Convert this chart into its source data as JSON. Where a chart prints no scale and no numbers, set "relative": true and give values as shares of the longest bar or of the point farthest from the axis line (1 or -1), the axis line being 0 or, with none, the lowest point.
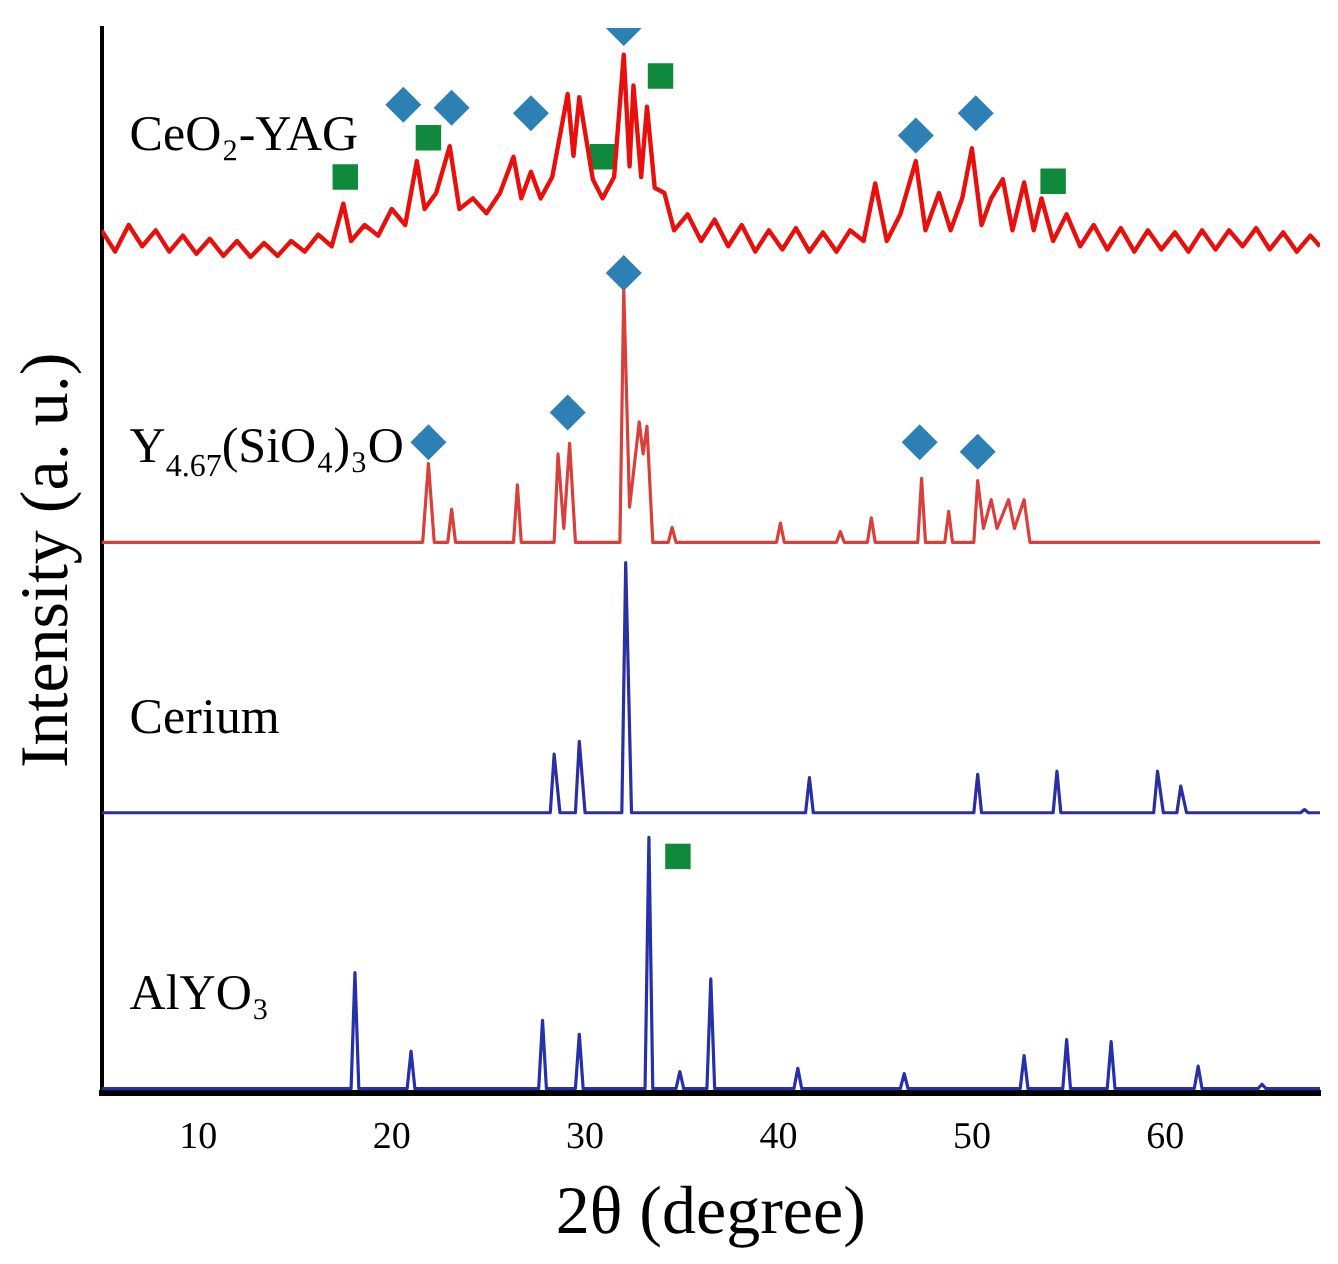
{
  "chart_data": {
    "type": "line",
    "relative": true,
    "xlabel": "2θ (degree)",
    "ylabel": "Intensity (a. u.)",
    "xlim": [
      5,
      68
    ],
    "xticks": [
      10,
      20,
      30,
      40,
      50,
      60
    ],
    "tick_labels": "x",
    "grid": false,
    "legend": false,
    "series": [
      {
        "name": "CeO₂-YAG",
        "type": "line",
        "marker": "none",
        "color": "#e8100c",
        "x": [
          5,
          5.7,
          6.4,
          7.1,
          7.8,
          8.5,
          9.2,
          9.9,
          10.6,
          11.3,
          12,
          12.7,
          13.4,
          14.1,
          14.8,
          15.5,
          16.2,
          16.9,
          17.5,
          17.9,
          18.6,
          19.3,
          20,
          20.7,
          21.3,
          21.7,
          22.3,
          23,
          23.5,
          24.2,
          24.9,
          25.6,
          26.3,
          26.7,
          27.2,
          27.7,
          28.3,
          29.1,
          29.4,
          29.7,
          30.4,
          30.9,
          31.5,
          32,
          32.3,
          32.5,
          32.9,
          33.2,
          33.6,
          34.1,
          34.6,
          35.3,
          36,
          36.7,
          37.4,
          38.1,
          38.8,
          39.5,
          40.2,
          40.9,
          41.6,
          42.3,
          43,
          43.7,
          44.4,
          45,
          45.6,
          46.3,
          47.1,
          47.6,
          48.3,
          48.9,
          49.5,
          50,
          50.5,
          51,
          51.6,
          52.1,
          52.7,
          53.2,
          53.6,
          54.2,
          54.9,
          55.6,
          56.3,
          57,
          57.7,
          58.4,
          59.1,
          59.8,
          60.5,
          61.2,
          61.9,
          62.6,
          63.3,
          64,
          64.7,
          65.4,
          66.1,
          66.8,
          67.5,
          68
        ],
        "values": [
          0.81,
          0.79,
          0.815,
          0.795,
          0.81,
          0.79,
          0.805,
          0.788,
          0.802,
          0.786,
          0.8,
          0.785,
          0.798,
          0.786,
          0.8,
          0.79,
          0.806,
          0.795,
          0.835,
          0.8,
          0.815,
          0.805,
          0.83,
          0.815,
          0.875,
          0.83,
          0.845,
          0.889,
          0.83,
          0.84,
          0.826,
          0.845,
          0.879,
          0.84,
          0.865,
          0.84,
          0.86,
          0.938,
          0.88,
          0.935,
          0.858,
          0.84,
          0.86,
          0.975,
          0.87,
          0.946,
          0.86,
          0.926,
          0.85,
          0.845,
          0.81,
          0.825,
          0.8,
          0.82,
          0.795,
          0.815,
          0.79,
          0.81,
          0.792,
          0.812,
          0.79,
          0.808,
          0.79,
          0.81,
          0.8,
          0.854,
          0.8,
          0.825,
          0.875,
          0.81,
          0.845,
          0.81,
          0.84,
          0.887,
          0.815,
          0.84,
          0.858,
          0.81,
          0.855,
          0.81,
          0.84,
          0.8,
          0.825,
          0.795,
          0.815,
          0.792,
          0.812,
          0.79,
          0.81,
          0.792,
          0.808,
          0.79,
          0.81,
          0.792,
          0.81,
          0.795,
          0.812,
          0.792,
          0.808,
          0.79,
          0.805,
          0.795
        ]
      },
      {
        "name": "Y$_{4.67}$(SiO₄)₃O",
        "type": "line",
        "marker": "none",
        "color": "#d8403c",
        "x": [
          5,
          21.6,
          21.9,
          22.2,
          22.9,
          23.1,
          23.3,
          26.3,
          26.5,
          26.7,
          28.4,
          28.6,
          28.9,
          29.2,
          29.5,
          31.8,
          32.0,
          32.3,
          32.8,
          33.0,
          33.2,
          33.5,
          34.3,
          34.5,
          34.7,
          39.9,
          40.1,
          40.3,
          43.0,
          43.2,
          43.4,
          44.6,
          44.8,
          45.0,
          47.2,
          47.4,
          47.6,
          48.6,
          48.8,
          49.0,
          50.1,
          50.3,
          50.6,
          51.0,
          51.3,
          51.9,
          52.2,
          52.7,
          53.0,
          68
        ],
        "values": [
          0.517,
          0.517,
          0.591,
          0.517,
          0.517,
          0.548,
          0.517,
          0.517,
          0.571,
          0.517,
          0.517,
          0.6,
          0.53,
          0.61,
          0.517,
          0.517,
          0.754,
          0.55,
          0.63,
          0.6,
          0.626,
          0.517,
          0.517,
          0.531,
          0.517,
          0.517,
          0.535,
          0.517,
          0.517,
          0.527,
          0.517,
          0.517,
          0.54,
          0.517,
          0.517,
          0.577,
          0.517,
          0.517,
          0.546,
          0.517,
          0.517,
          0.575,
          0.53,
          0.557,
          0.53,
          0.557,
          0.53,
          0.557,
          0.517,
          0.517
        ]
      },
      {
        "name": "Cerium",
        "type": "line",
        "marker": "none",
        "color": "#2b2fa0",
        "x": [
          5,
          28.2,
          28.4,
          28.7,
          29.5,
          29.7,
          30.0,
          31.9,
          32.1,
          32.4,
          41.4,
          41.6,
          41.8,
          50.1,
          50.3,
          50.5,
          54.2,
          54.4,
          54.6,
          59.4,
          59.6,
          59.9,
          60.6,
          60.8,
          61.1,
          67.0,
          67.2,
          67.4,
          68
        ],
        "values": [
          0.263,
          0.263,
          0.318,
          0.263,
          0.263,
          0.33,
          0.263,
          0.263,
          0.498,
          0.263,
          0.263,
          0.296,
          0.263,
          0.263,
          0.299,
          0.263,
          0.263,
          0.302,
          0.263,
          0.263,
          0.302,
          0.263,
          0.263,
          0.288,
          0.263,
          0.263,
          0.266,
          0.263,
          0.263
        ]
      },
      {
        "name": "AlYO₃",
        "type": "line",
        "marker": "none",
        "color": "#2630a8",
        "x": [
          5,
          17.9,
          18.1,
          18.3,
          20.8,
          21.0,
          21.2,
          27.6,
          27.8,
          28.0,
          29.5,
          29.7,
          29.9,
          33.1,
          33.3,
          33.5,
          34.7,
          34.9,
          35.1,
          36.3,
          36.5,
          36.7,
          40.8,
          41.0,
          41.2,
          46.3,
          46.5,
          46.7,
          52.5,
          52.7,
          52.9,
          54.7,
          54.9,
          55.1,
          57.0,
          57.2,
          57.4,
          61.5,
          61.7,
          61.9,
          64.8,
          65.0,
          65.2,
          68
        ],
        "values": [
          0.004,
          0.004,
          0.113,
          0.004,
          0.004,
          0.039,
          0.004,
          0.004,
          0.068,
          0.004,
          0.004,
          0.055,
          0.004,
          0.004,
          0.24,
          0.004,
          0.004,
          0.02,
          0.004,
          0.004,
          0.107,
          0.004,
          0.004,
          0.023,
          0.004,
          0.004,
          0.018,
          0.004,
          0.004,
          0.035,
          0.004,
          0.004,
          0.05,
          0.004,
          0.004,
          0.048,
          0.004,
          0.004,
          0.025,
          0.004,
          0.004,
          0.008,
          0.004,
          0.004
        ]
      },
      {
        "type": "scatter",
        "marker": "diamond",
        "color": "#2c80b4",
        "x": [
          32.0,
          20.6,
          23.1,
          27.2,
          47.1,
          50.2,
          32.0,
          21.9,
          29.1,
          47.3,
          50.3
        ],
        "values": [
          1.0,
          0.928,
          0.925,
          0.92,
          0.899,
          0.92,
          0.77,
          0.611,
          0.639,
          0.611,
          0.602
        ]
      },
      {
        "type": "scatter",
        "marker": "square",
        "color": "#0f8a3c",
        "x": [
          17.6,
          21.9,
          30.9,
          33.9,
          54.2,
          34.8
        ],
        "values": [
          0.86,
          0.897,
          0.879,
          0.955,
          0.856,
          0.222
        ]
      }
    ]
  }
}
